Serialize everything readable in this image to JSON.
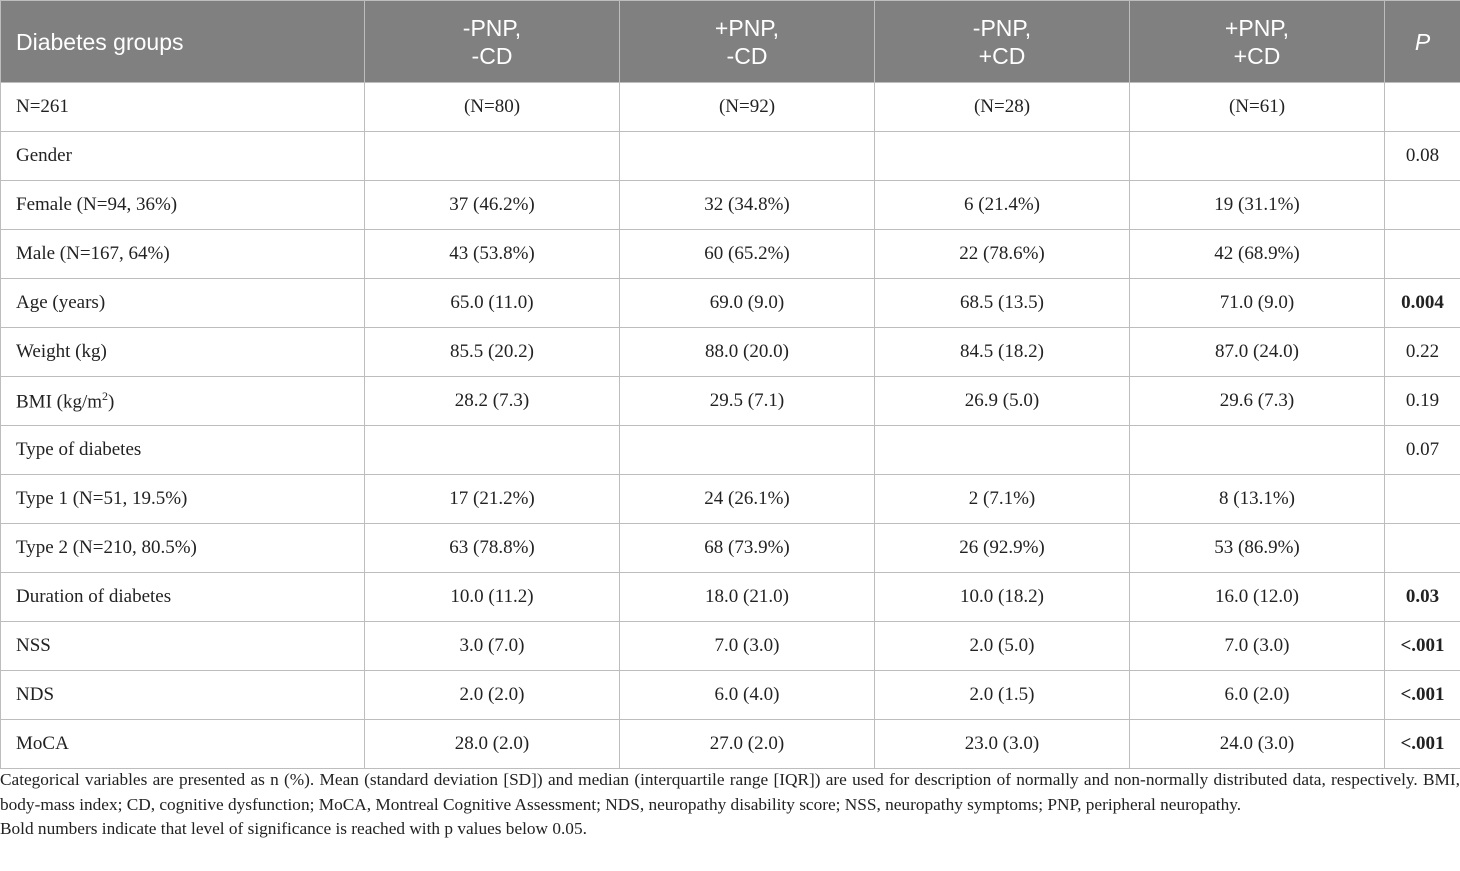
{
  "table": {
    "headers": {
      "groups": "Diabetes groups",
      "col1": [
        "-PNP,",
        "-CD"
      ],
      "col2": [
        "+PNP,",
        "-CD"
      ],
      "col3": [
        "-PNP,",
        "+CD"
      ],
      "col4": [
        "+PNP,",
        "+CD"
      ],
      "p": "P"
    },
    "rows": [
      {
        "label": "N=261",
        "c1": "(N=80)",
        "c2": "(N=92)",
        "c3": "(N=28)",
        "c4": "(N=61)",
        "p": "",
        "p_bold": false
      },
      {
        "label": "Gender",
        "c1": "",
        "c2": "",
        "c3": "",
        "c4": "",
        "p": "0.08",
        "p_bold": false
      },
      {
        "label": "Female (N=94, 36%)",
        "c1": "37 (46.2%)",
        "c2": "32 (34.8%)",
        "c3": "6 (21.4%)",
        "c4": "19 (31.1%)",
        "p": "",
        "p_bold": false
      },
      {
        "label": "Male (N=167, 64%)",
        "c1": "43 (53.8%)",
        "c2": "60 (65.2%)",
        "c3": "22 (78.6%)",
        "c4": "42 (68.9%)",
        "p": "",
        "p_bold": false
      },
      {
        "label": "Age (years)",
        "c1": "65.0 (11.0)",
        "c2": "69.0 (9.0)",
        "c3": "68.5 (13.5)",
        "c4": "71.0 (9.0)",
        "p": "0.004",
        "p_bold": true
      },
      {
        "label": "Weight (kg)",
        "c1": "85.5 (20.2)",
        "c2": "88.0 (20.0)",
        "c3": "84.5 (18.2)",
        "c4": "87.0 (24.0)",
        "p": "0.22",
        "p_bold": false
      },
      {
        "label": "BMI (kg/m",
        "label_sup": "2",
        "label_tail": ")",
        "c1": "28.2 (7.3)",
        "c2": "29.5 (7.1)",
        "c3": "26.9 (5.0)",
        "c4": "29.6 (7.3)",
        "p": "0.19",
        "p_bold": false
      },
      {
        "label": "Type of diabetes",
        "c1": "",
        "c2": "",
        "c3": "",
        "c4": "",
        "p": "0.07",
        "p_bold": false
      },
      {
        "label": "Type 1 (N=51, 19.5%)",
        "c1": "17 (21.2%)",
        "c2": "24 (26.1%)",
        "c3": "2 (7.1%)",
        "c4": "8 (13.1%)",
        "p": "",
        "p_bold": false
      },
      {
        "label": "Type 2 (N=210, 80.5%)",
        "c1": "63 (78.8%)",
        "c2": "68 (73.9%)",
        "c3": "26 (92.9%)",
        "c4": "53 (86.9%)",
        "p": "",
        "p_bold": false
      },
      {
        "label": "Duration of diabetes",
        "c1": "10.0 (11.2)",
        "c2": "18.0 (21.0)",
        "c3": "10.0 (18.2)",
        "c4": "16.0 (12.0)",
        "p": "0.03",
        "p_bold": true
      },
      {
        "label": "NSS",
        "c1": "3.0 (7.0)",
        "c2": "7.0 (3.0)",
        "c3": "2.0 (5.0)",
        "c4": "7.0 (3.0)",
        "p": "<.001",
        "p_bold": true
      },
      {
        "label": "NDS",
        "c1": "2.0 (2.0)",
        "c2": "6.0 (4.0)",
        "c3": "2.0 (1.5)",
        "c4": "6.0 (2.0)",
        "p": "<.001",
        "p_bold": true
      },
      {
        "label": "MoCA",
        "c1": "28.0 (2.0)",
        "c2": "27.0 (2.0)",
        "c3": "23.0 (3.0)",
        "c4": "24.0 (3.0)",
        "p": "<.001",
        "p_bold": true
      }
    ]
  },
  "footnotes": {
    "note1": "Categorical variables are presented as n (%). Mean (standard deviation [SD]) and median (interquartile range [IQR]) are used for description of normally and non-normally distributed data, respectively. BMI, body-mass index; CD, cognitive dysfunction; MoCA, Montreal Cognitive Assessment; NDS, neuropathy disability score; NSS, neuropathy symptoms; PNP, peripheral neuropathy.",
    "note2": "Bold numbers indicate that level of significance is reached with p values below 0.05."
  }
}
